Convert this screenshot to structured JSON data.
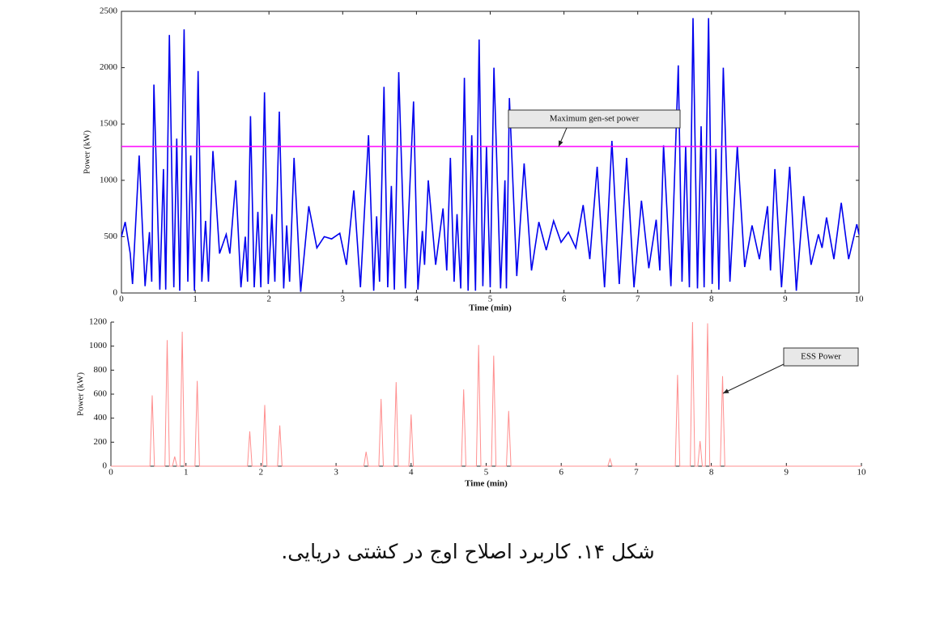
{
  "chart_data": [
    {
      "type": "line",
      "xlabel": "Time (min)",
      "ylabel": "Power (kW)",
      "color": "#0000ee",
      "x": [
        0,
        0.05,
        0.12,
        0.15,
        0.24,
        0.32,
        0.38,
        0.41,
        0.44,
        0.52,
        0.57,
        0.6,
        0.65,
        0.71,
        0.75,
        0.79,
        0.85,
        0.9,
        0.94,
        0.99,
        1.04,
        1.09,
        1.14,
        1.18,
        1.24,
        1.33,
        1.42,
        1.47,
        1.55,
        1.62,
        1.68,
        1.71,
        1.75,
        1.8,
        1.85,
        1.89,
        1.94,
        1.99,
        2.04,
        2.08,
        2.14,
        2.2,
        2.24,
        2.28,
        2.34,
        2.43,
        2.54,
        2.65,
        2.75,
        2.85,
        2.96,
        3.05,
        3.15,
        3.24,
        3.35,
        3.42,
        3.46,
        3.5,
        3.56,
        3.61,
        3.66,
        3.7,
        3.76,
        3.85,
        3.96,
        4.02,
        4.08,
        4.11,
        4.16,
        4.26,
        4.36,
        4.41,
        4.46,
        4.51,
        4.55,
        4.6,
        4.65,
        4.7,
        4.75,
        4.8,
        4.85,
        4.9,
        4.95,
        5.0,
        5.05,
        5.14,
        5.2,
        5.22,
        5.26,
        5.36,
        5.46,
        5.56,
        5.66,
        5.76,
        5.86,
        5.96,
        6.06,
        6.16,
        6.26,
        6.35,
        6.45,
        6.55,
        6.65,
        6.75,
        6.85,
        6.95,
        7.05,
        7.15,
        7.25,
        7.3,
        7.35,
        7.45,
        7.55,
        7.6,
        7.65,
        7.7,
        7.75,
        7.81,
        7.86,
        7.9,
        7.96,
        8.01,
        8.06,
        8.1,
        8.16,
        8.25,
        8.35,
        8.45,
        8.55,
        8.65,
        8.76,
        8.8,
        8.86,
        8.95,
        9.06,
        9.15,
        9.25,
        9.35,
        9.45,
        9.5,
        9.56,
        9.66,
        9.76,
        9.86,
        9.97,
        10
      ],
      "values": [
        500,
        630,
        350,
        80,
        1220,
        60,
        540,
        100,
        1850,
        30,
        1100,
        30,
        2290,
        50,
        1370,
        20,
        2340,
        100,
        1220,
        20,
        1970,
        100,
        640,
        100,
        1260,
        350,
        520,
        350,
        1000,
        50,
        500,
        100,
        1570,
        50,
        720,
        50,
        1780,
        80,
        700,
        100,
        1610,
        40,
        600,
        100,
        1200,
        10,
        770,
        400,
        500,
        480,
        530,
        250,
        910,
        50,
        1400,
        20,
        680,
        100,
        1830,
        50,
        950,
        30,
        1960,
        40,
        1700,
        30,
        550,
        250,
        1000,
        250,
        750,
        200,
        1200,
        100,
        700,
        40,
        1910,
        20,
        1400,
        20,
        2250,
        60,
        1300,
        50,
        2000,
        40,
        1000,
        40,
        1730,
        150,
        1150,
        200,
        630,
        380,
        640,
        450,
        540,
        400,
        780,
        300,
        1120,
        50,
        1350,
        80,
        1200,
        50,
        820,
        220,
        650,
        200,
        1310,
        60,
        2020,
        100,
        1300,
        50,
        2440,
        40,
        1480,
        50,
        2440,
        80,
        1280,
        30,
        2000,
        100,
        1300,
        230,
        600,
        300,
        770,
        200,
        1100,
        50,
        1120,
        20,
        860,
        250,
        520,
        400,
        670,
        300,
        800,
        300,
        610,
        520
      ],
      "reference_line": {
        "value": 1300,
        "color": "#ff00ff"
      },
      "annotation": "Maximum gen-set power",
      "xlim": [
        0,
        10
      ],
      "xticks": [
        0,
        1,
        2,
        3,
        4,
        5,
        6,
        7,
        8,
        9,
        10
      ],
      "ylim": [
        0,
        2500
      ],
      "yticks": [
        0,
        500,
        1000,
        1500,
        2000,
        2500
      ]
    },
    {
      "type": "line",
      "xlabel": "Time (min)",
      "ylabel": "Power (kW)",
      "color": "#ff8f8f",
      "x": [
        0,
        0.52,
        0.55,
        0.58,
        0.72,
        0.75,
        0.78,
        0.82,
        0.85,
        0.88,
        0.92,
        0.95,
        0.98,
        1.12,
        1.15,
        1.18,
        1.82,
        1.85,
        1.88,
        2.02,
        2.05,
        2.08,
        2.22,
        2.25,
        2.28,
        3.37,
        3.4,
        3.43,
        3.57,
        3.6,
        3.63,
        3.77,
        3.8,
        3.83,
        3.97,
        4.0,
        4.03,
        4.67,
        4.7,
        4.73,
        4.87,
        4.9,
        4.93,
        5.07,
        5.1,
        5.13,
        5.27,
        5.3,
        5.33,
        6.62,
        6.65,
        6.68,
        7.52,
        7.55,
        7.58,
        7.72,
        7.75,
        7.78,
        7.82,
        7.85,
        7.88,
        7.92,
        7.95,
        7.98,
        8.12,
        8.15,
        8.18,
        10
      ],
      "values": [
        0,
        0,
        590,
        0,
        0,
        1050,
        0,
        0,
        80,
        0,
        0,
        1120,
        0,
        0,
        710,
        0,
        0,
        290,
        0,
        0,
        510,
        0,
        0,
        340,
        0,
        0,
        120,
        0,
        0,
        560,
        0,
        0,
        700,
        0,
        0,
        430,
        0,
        0,
        640,
        0,
        0,
        1010,
        0,
        0,
        920,
        0,
        0,
        460,
        0,
        0,
        60,
        0,
        0,
        760,
        0,
        0,
        1200,
        0,
        0,
        210,
        0,
        0,
        1190,
        0,
        0,
        750,
        0,
        0
      ],
      "annotation": "ESS Power",
      "xlim": [
        0,
        10
      ],
      "xticks": [
        0,
        1,
        2,
        3,
        4,
        5,
        6,
        7,
        8,
        9,
        10
      ],
      "ylim": [
        0,
        1200
      ],
      "yticks": [
        0,
        200,
        400,
        600,
        800,
        1000,
        1200
      ]
    }
  ],
  "caption": "شکل ۱۴. کاربرد اصلاح اوج در کشتی دریایی."
}
